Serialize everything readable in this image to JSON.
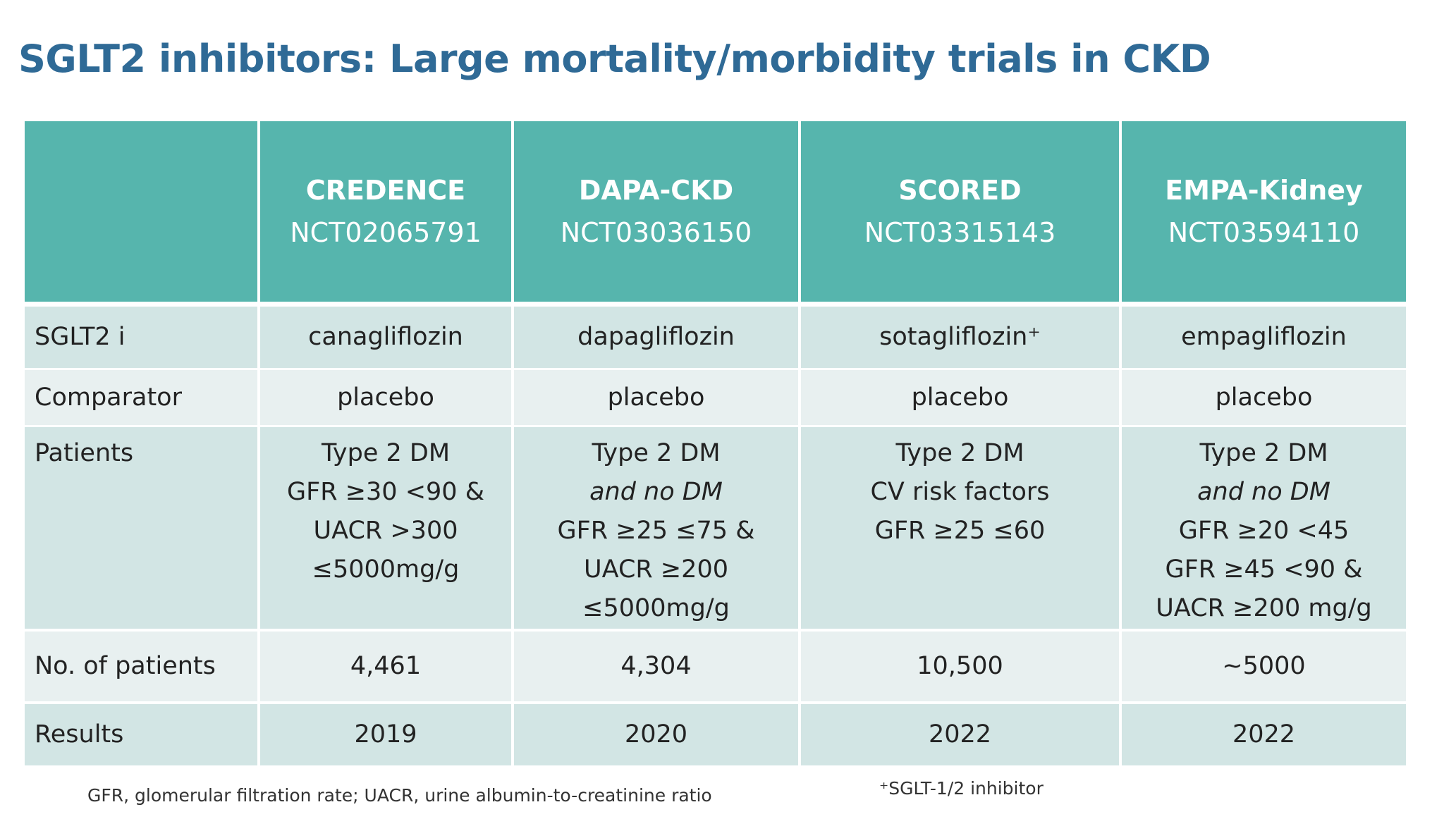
{
  "title": "SGLT2 inhibitors: Large mortality/morbidity trials in CKD",
  "table": {
    "columns": [
      {
        "name": "CREDENCE",
        "id": "NCT02065791"
      },
      {
        "name": "DAPA-CKD",
        "id": "NCT03036150"
      },
      {
        "name": "SCORED",
        "id": "NCT03315143"
      },
      {
        "name": "EMPA-Kidney",
        "id": "NCT03594110"
      }
    ],
    "rows": [
      {
        "label": "SGLT2 i",
        "cells": [
          [
            "canagliflozin"
          ],
          [
            "dapagliflozin"
          ],
          [
            "sotagliflozin⁺"
          ],
          [
            "empagliflozin"
          ]
        ]
      },
      {
        "label": "Comparator",
        "cells": [
          [
            "placebo"
          ],
          [
            "placebo"
          ],
          [
            "placebo"
          ],
          [
            "placebo"
          ]
        ]
      },
      {
        "label": "Patients",
        "cells": [
          [
            "Type 2 DM",
            "GFR ≥30 <90 &",
            "UACR >300",
            "≤5000mg/g"
          ],
          [
            "Type 2 DM",
            {
              "text": "and no DM",
              "italic": true
            },
            "GFR ≥25 ≤75 &",
            "UACR ≥200",
            "≤5000mg/g"
          ],
          [
            "Type 2 DM",
            "CV risk factors",
            "GFR ≥25 ≤60"
          ],
          [
            "Type 2 DM",
            {
              "text": "and no DM",
              "italic": true
            },
            "GFR ≥20 <45",
            "GFR ≥45 <90 &",
            "UACR  ≥200 mg/g"
          ]
        ]
      },
      {
        "label": "No. of patients",
        "cells": [
          [
            "4,461"
          ],
          [
            "4,304"
          ],
          [
            "10,500"
          ],
          [
            "~5000"
          ]
        ]
      },
      {
        "label": "Results",
        "cells": [
          [
            "2019"
          ],
          [
            "2020"
          ],
          [
            "2022"
          ],
          [
            "2022"
          ]
        ]
      }
    ]
  },
  "footnotes": {
    "abbreviations": "GFR, glomerular filtration rate; UACR, urine albumin-to-creatinine ratio",
    "symbol": "⁺SGLT-1/2 inhibitor"
  }
}
